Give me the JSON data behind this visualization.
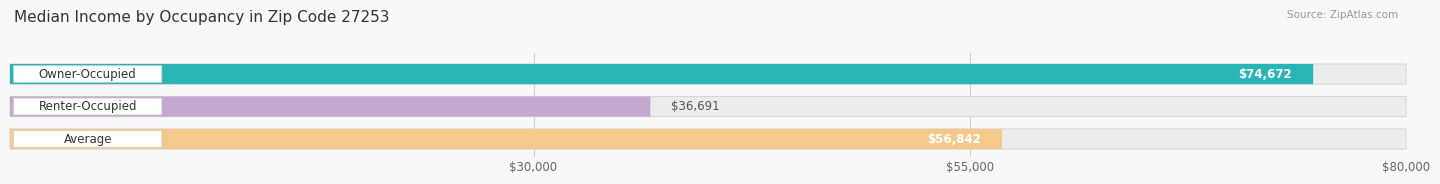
{
  "title": "Median Income by Occupancy in Zip Code 27253",
  "source": "Source: ZipAtlas.com",
  "categories": [
    "Owner-Occupied",
    "Renter-Occupied",
    "Average"
  ],
  "values": [
    74672,
    36691,
    56842
  ],
  "bar_colors": [
    "#29b5b5",
    "#c4a8d0",
    "#f5c98a"
  ],
  "value_labels": [
    "$74,672",
    "$36,691",
    "$56,842"
  ],
  "xmin": 0,
  "xmax": 80000,
  "xticks": [
    30000,
    55000,
    80000
  ],
  "xtick_labels": [
    "$30,000",
    "$55,000",
    "$80,000"
  ],
  "title_fontsize": 11,
  "label_fontsize": 8.5,
  "bar_height": 0.62,
  "bg_color": "#f8f8f8",
  "bar_bg_color": "#ececec"
}
